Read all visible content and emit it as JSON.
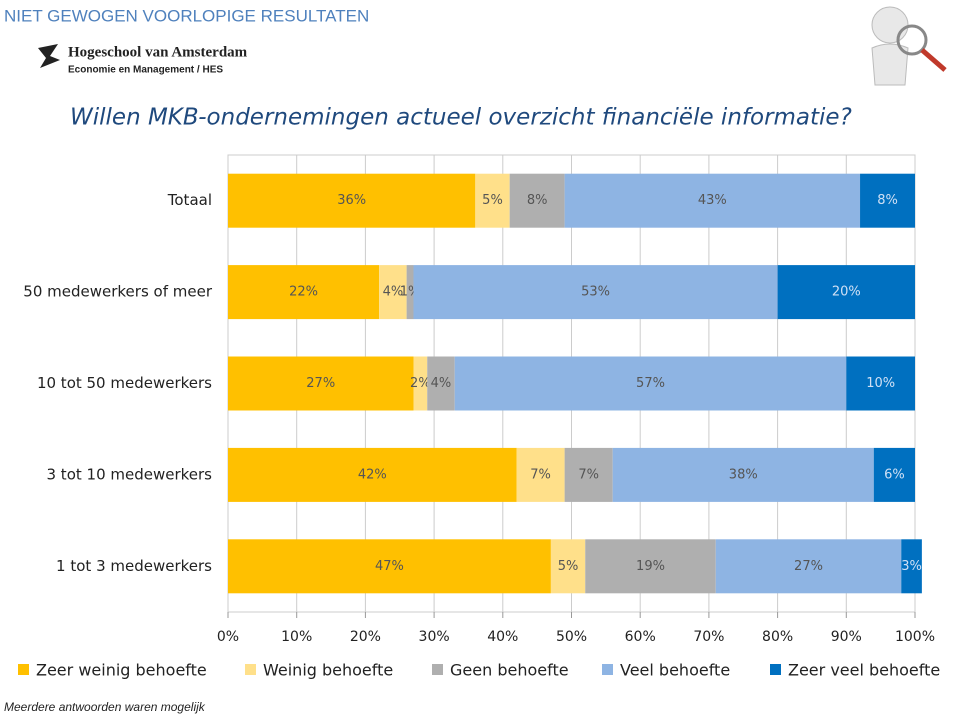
{
  "header": {
    "banner": "Niet gewogen voorlopige resultaten",
    "logo_name": "Hogeschool van Amsterdam",
    "logo_sub": "Economie en Management / HES",
    "footnote": "Meerdere antwoorden waren mogelijk"
  },
  "chart_data": {
    "type": "stacked-barh",
    "title": "Willen MKB-ondernemingen actueel overzicht financiële informatie?",
    "categories": [
      "Totaal",
      "50 medewerkers of meer",
      "10 tot 50 medewerkers",
      "3 tot 10 medewerkers",
      "1 tot 3 medewerkers"
    ],
    "series": [
      {
        "name": "Zeer weinig behoefte",
        "color": "#ffc000",
        "values": [
          36,
          22,
          27,
          42,
          47
        ],
        "value_labels": [
          "36%",
          "22%",
          "27%",
          "42%",
          "47%"
        ]
      },
      {
        "name": "Weinig behoefte",
        "color": "#ffe08a",
        "values": [
          5,
          4,
          2,
          7,
          5
        ],
        "value_labels": [
          "5%",
          "4%",
          "2%",
          "7%",
          "5%"
        ]
      },
      {
        "name": "Geen behoefte",
        "color": "#afafaf",
        "values": [
          8,
          1,
          4,
          7,
          19
        ],
        "value_labels": [
          "8%",
          "1%",
          "4%",
          "7%",
          "19%"
        ]
      },
      {
        "name": "Veel behoefte",
        "color": "#8eb4e3",
        "values": [
          43,
          53,
          57,
          38,
          27
        ],
        "value_labels": [
          "43%",
          "53%",
          "57%",
          "38%",
          "27%"
        ]
      },
      {
        "name": "Zeer veel behoefte",
        "color": "#0070c0",
        "values": [
          8,
          20,
          10,
          6,
          3
        ],
        "value_labels": [
          "8%",
          "20%",
          "10%",
          "6%",
          "3%"
        ]
      }
    ],
    "xlim": [
      0,
      100
    ],
    "xticks": [
      {
        "value": 0,
        "label": "0%"
      },
      {
        "value": 10,
        "label": "10%"
      },
      {
        "value": 20,
        "label": "20%"
      },
      {
        "value": 30,
        "label": "30%"
      },
      {
        "value": 40,
        "label": "40%"
      },
      {
        "value": 50,
        "label": "50%"
      },
      {
        "value": 60,
        "label": "60%"
      },
      {
        "value": 70,
        "label": "70%"
      },
      {
        "value": 80,
        "label": "80%"
      },
      {
        "value": 90,
        "label": "90%"
      },
      {
        "value": 100,
        "label": "100%"
      }
    ],
    "grid": true
  }
}
